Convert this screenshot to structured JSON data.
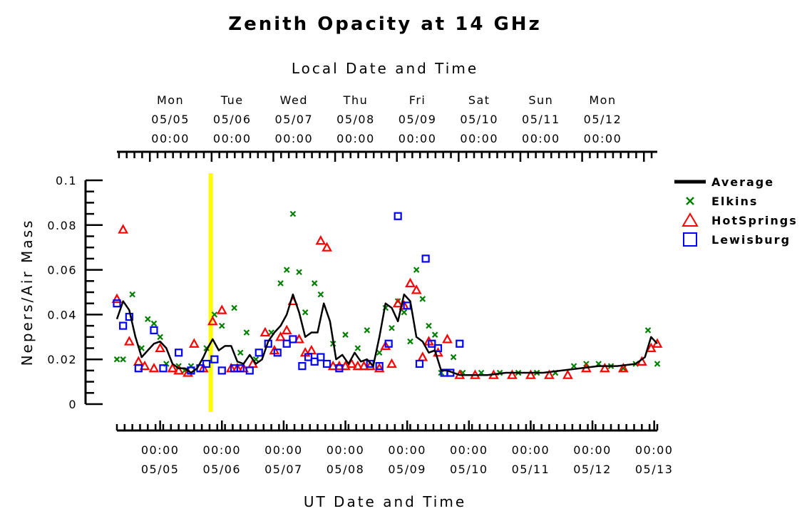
{
  "chart_data": {
    "type": "scatter",
    "title": "Zenith Opacity at 14 GHz",
    "ylabel": "Nepers/Air Mass",
    "xlabel_bottom": "UT Date and Time",
    "xlabel_top": "Local Date and Time",
    "ylim": [
      0,
      0.1
    ],
    "y_ticks": [
      "0",
      "0.02",
      "0.04",
      "0.06",
      "0.08",
      "0.1"
    ],
    "x_unit": "days from 05/05 00:00 UT",
    "xlim": [
      -0.7,
      8.05
    ],
    "top_ticks": [
      {
        "day": "Mon",
        "date": "05/05",
        "time": "00:00"
      },
      {
        "day": "Tue",
        "date": "05/06",
        "time": "00:00"
      },
      {
        "day": "Wed",
        "date": "05/07",
        "time": "00:00"
      },
      {
        "day": "Thu",
        "date": "05/08",
        "time": "00:00"
      },
      {
        "day": "Fri",
        "date": "05/09",
        "time": "00:00"
      },
      {
        "day": "Sat",
        "date": "05/10",
        "time": "00:00"
      },
      {
        "day": "Sun",
        "date": "05/11",
        "time": "00:00"
      },
      {
        "day": "Mon",
        "date": "05/12",
        "time": "00:00"
      }
    ],
    "bottom_ticks": [
      {
        "time": "00:00",
        "date": "05/05"
      },
      {
        "time": "00:00",
        "date": "05/06"
      },
      {
        "time": "00:00",
        "date": "05/07"
      },
      {
        "time": "00:00",
        "date": "05/08"
      },
      {
        "time": "00:00",
        "date": "05/09"
      },
      {
        "time": "00:00",
        "date": "05/10"
      },
      {
        "time": "00:00",
        "date": "05/11"
      },
      {
        "time": "00:00",
        "date": "05/12"
      },
      {
        "time": "00:00",
        "date": "05/13"
      }
    ],
    "marker_line": {
      "x": 0.82,
      "color": "#ffff00"
    },
    "legend_position": "right",
    "series": [
      {
        "name": "Average",
        "marker": "line",
        "color": "#000000",
        "points": [
          [
            -0.7,
            0.038
          ],
          [
            -0.6,
            0.046
          ],
          [
            -0.5,
            0.042
          ],
          [
            -0.4,
            0.03
          ],
          [
            -0.3,
            0.021
          ],
          [
            -0.2,
            0.024
          ],
          [
            -0.1,
            0.027
          ],
          [
            0.0,
            0.028
          ],
          [
            0.1,
            0.025
          ],
          [
            0.2,
            0.018
          ],
          [
            0.3,
            0.016
          ],
          [
            0.4,
            0.016
          ],
          [
            0.5,
            0.014
          ],
          [
            0.6,
            0.016
          ],
          [
            0.7,
            0.021
          ],
          [
            0.75,
            0.024
          ],
          [
            0.85,
            0.029
          ],
          [
            0.95,
            0.024
          ],
          [
            1.05,
            0.026
          ],
          [
            1.15,
            0.026
          ],
          [
            1.25,
            0.019
          ],
          [
            1.35,
            0.018
          ],
          [
            1.45,
            0.022
          ],
          [
            1.55,
            0.018
          ],
          [
            1.65,
            0.02
          ],
          [
            1.75,
            0.028
          ],
          [
            1.85,
            0.032
          ],
          [
            1.95,
            0.035
          ],
          [
            2.05,
            0.04
          ],
          [
            2.15,
            0.049
          ],
          [
            2.25,
            0.041
          ],
          [
            2.35,
            0.03
          ],
          [
            2.45,
            0.032
          ],
          [
            2.55,
            0.032
          ],
          [
            2.65,
            0.045
          ],
          [
            2.75,
            0.037
          ],
          [
            2.85,
            0.02
          ],
          [
            2.95,
            0.022
          ],
          [
            3.05,
            0.018
          ],
          [
            3.15,
            0.023
          ],
          [
            3.25,
            0.019
          ],
          [
            3.35,
            0.02
          ],
          [
            3.45,
            0.017
          ],
          [
            3.55,
            0.03
          ],
          [
            3.65,
            0.045
          ],
          [
            3.75,
            0.043
          ],
          [
            3.85,
            0.037
          ],
          [
            3.95,
            0.049
          ],
          [
            4.05,
            0.046
          ],
          [
            4.15,
            0.03
          ],
          [
            4.25,
            0.028
          ],
          [
            4.35,
            0.023
          ],
          [
            4.45,
            0.024
          ],
          [
            4.55,
            0.015
          ],
          [
            4.65,
            0.015
          ],
          [
            4.75,
            0.014
          ],
          [
            4.85,
            0.013
          ],
          [
            5.0,
            0.013
          ],
          [
            5.3,
            0.013
          ],
          [
            5.6,
            0.014
          ],
          [
            5.9,
            0.014
          ],
          [
            6.2,
            0.014
          ],
          [
            6.5,
            0.015
          ],
          [
            6.8,
            0.016
          ],
          [
            7.1,
            0.017
          ],
          [
            7.4,
            0.017
          ],
          [
            7.7,
            0.018
          ],
          [
            7.85,
            0.021
          ],
          [
            7.95,
            0.03
          ],
          [
            8.05,
            0.027
          ]
        ]
      },
      {
        "name": "Elkins",
        "marker": "x",
        "color": "#008000",
        "points": [
          [
            -0.7,
            0.02
          ],
          [
            -0.6,
            0.02
          ],
          [
            -0.45,
            0.049
          ],
          [
            -0.3,
            0.025
          ],
          [
            -0.2,
            0.038
          ],
          [
            -0.1,
            0.036
          ],
          [
            0.0,
            0.03
          ],
          [
            0.1,
            0.018
          ],
          [
            0.3,
            0.017
          ],
          [
            0.4,
            0.015
          ],
          [
            0.5,
            0.017
          ],
          [
            0.75,
            0.025
          ],
          [
            0.88,
            0.04
          ],
          [
            1.0,
            0.035
          ],
          [
            1.2,
            0.043
          ],
          [
            1.3,
            0.023
          ],
          [
            1.4,
            0.032
          ],
          [
            1.55,
            0.02
          ],
          [
            1.8,
            0.032
          ],
          [
            1.95,
            0.054
          ],
          [
            2.05,
            0.06
          ],
          [
            2.15,
            0.085
          ],
          [
            2.25,
            0.059
          ],
          [
            2.35,
            0.041
          ],
          [
            2.5,
            0.054
          ],
          [
            2.6,
            0.049
          ],
          [
            2.8,
            0.027
          ],
          [
            3.0,
            0.031
          ],
          [
            3.2,
            0.025
          ],
          [
            3.35,
            0.033
          ],
          [
            3.55,
            0.023
          ],
          [
            3.65,
            0.043
          ],
          [
            3.75,
            0.034
          ],
          [
            3.85,
            0.046
          ],
          [
            3.95,
            0.041
          ],
          [
            4.05,
            0.028
          ],
          [
            4.15,
            0.06
          ],
          [
            4.25,
            0.047
          ],
          [
            4.35,
            0.035
          ],
          [
            4.45,
            0.031
          ],
          [
            4.55,
            0.014
          ],
          [
            4.75,
            0.021
          ],
          [
            4.9,
            0.014
          ],
          [
            5.2,
            0.014
          ],
          [
            5.5,
            0.014
          ],
          [
            5.8,
            0.014
          ],
          [
            6.1,
            0.014
          ],
          [
            6.4,
            0.014
          ],
          [
            6.7,
            0.017
          ],
          [
            6.9,
            0.018
          ],
          [
            7.1,
            0.018
          ],
          [
            7.3,
            0.017
          ],
          [
            7.5,
            0.016
          ],
          [
            7.7,
            0.018
          ],
          [
            7.9,
            0.033
          ],
          [
            8.05,
            0.018
          ]
        ]
      },
      {
        "name": "HotSprings",
        "marker": "triangle",
        "color": "#ff0000",
        "points": [
          [
            -0.7,
            0.047
          ],
          [
            -0.6,
            0.078
          ],
          [
            -0.5,
            0.028
          ],
          [
            -0.35,
            0.019
          ],
          [
            -0.25,
            0.017
          ],
          [
            -0.1,
            0.016
          ],
          [
            0.0,
            0.025
          ],
          [
            0.2,
            0.016
          ],
          [
            0.3,
            0.015
          ],
          [
            0.45,
            0.014
          ],
          [
            0.55,
            0.027
          ],
          [
            0.7,
            0.016
          ],
          [
            0.85,
            0.037
          ],
          [
            1.0,
            0.042
          ],
          [
            1.15,
            0.016
          ],
          [
            1.25,
            0.016
          ],
          [
            1.35,
            0.016
          ],
          [
            1.5,
            0.018
          ],
          [
            1.7,
            0.032
          ],
          [
            1.85,
            0.024
          ],
          [
            1.95,
            0.03
          ],
          [
            2.05,
            0.033
          ],
          [
            2.15,
            0.046
          ],
          [
            2.25,
            0.029
          ],
          [
            2.35,
            0.023
          ],
          [
            2.45,
            0.024
          ],
          [
            2.6,
            0.073
          ],
          [
            2.7,
            0.07
          ],
          [
            2.8,
            0.017
          ],
          [
            2.9,
            0.017
          ],
          [
            3.0,
            0.017
          ],
          [
            3.1,
            0.018
          ],
          [
            3.2,
            0.017
          ],
          [
            3.3,
            0.017
          ],
          [
            3.4,
            0.017
          ],
          [
            3.55,
            0.016
          ],
          [
            3.65,
            0.026
          ],
          [
            3.75,
            0.018
          ],
          [
            3.85,
            0.045
          ],
          [
            3.95,
            0.044
          ],
          [
            4.05,
            0.054
          ],
          [
            4.15,
            0.051
          ],
          [
            4.25,
            0.021
          ],
          [
            4.35,
            0.028
          ],
          [
            4.5,
            0.023
          ],
          [
            4.65,
            0.029
          ],
          [
            4.85,
            0.013
          ],
          [
            5.1,
            0.013
          ],
          [
            5.4,
            0.013
          ],
          [
            5.7,
            0.013
          ],
          [
            6.0,
            0.013
          ],
          [
            6.3,
            0.013
          ],
          [
            6.6,
            0.013
          ],
          [
            6.9,
            0.016
          ],
          [
            7.2,
            0.016
          ],
          [
            7.5,
            0.016
          ],
          [
            7.8,
            0.019
          ],
          [
            7.95,
            0.025
          ],
          [
            8.05,
            0.027
          ]
        ]
      },
      {
        "name": "Lewisburg",
        "marker": "square",
        "color": "#0000ff",
        "points": [
          [
            -0.7,
            0.045
          ],
          [
            -0.6,
            0.035
          ],
          [
            -0.5,
            0.039
          ],
          [
            -0.35,
            0.016
          ],
          [
            -0.1,
            0.033
          ],
          [
            0.05,
            0.016
          ],
          [
            0.3,
            0.023
          ],
          [
            0.5,
            0.015
          ],
          [
            0.65,
            0.016
          ],
          [
            0.75,
            0.018
          ],
          [
            0.88,
            0.02
          ],
          [
            1.0,
            0.015
          ],
          [
            1.2,
            0.016
          ],
          [
            1.3,
            0.016
          ],
          [
            1.45,
            0.015
          ],
          [
            1.6,
            0.023
          ],
          [
            1.75,
            0.027
          ],
          [
            1.9,
            0.023
          ],
          [
            2.05,
            0.027
          ],
          [
            2.15,
            0.029
          ],
          [
            2.3,
            0.017
          ],
          [
            2.4,
            0.021
          ],
          [
            2.5,
            0.019
          ],
          [
            2.6,
            0.021
          ],
          [
            2.7,
            0.018
          ],
          [
            2.9,
            0.016
          ],
          [
            3.4,
            0.018
          ],
          [
            3.55,
            0.017
          ],
          [
            3.7,
            0.027
          ],
          [
            3.85,
            0.084
          ],
          [
            4.0,
            0.044
          ],
          [
            4.2,
            0.018
          ],
          [
            4.3,
            0.065
          ],
          [
            4.4,
            0.027
          ],
          [
            4.5,
            0.025
          ],
          [
            4.6,
            0.014
          ],
          [
            4.7,
            0.014
          ],
          [
            4.85,
            0.027
          ]
        ]
      }
    ]
  }
}
